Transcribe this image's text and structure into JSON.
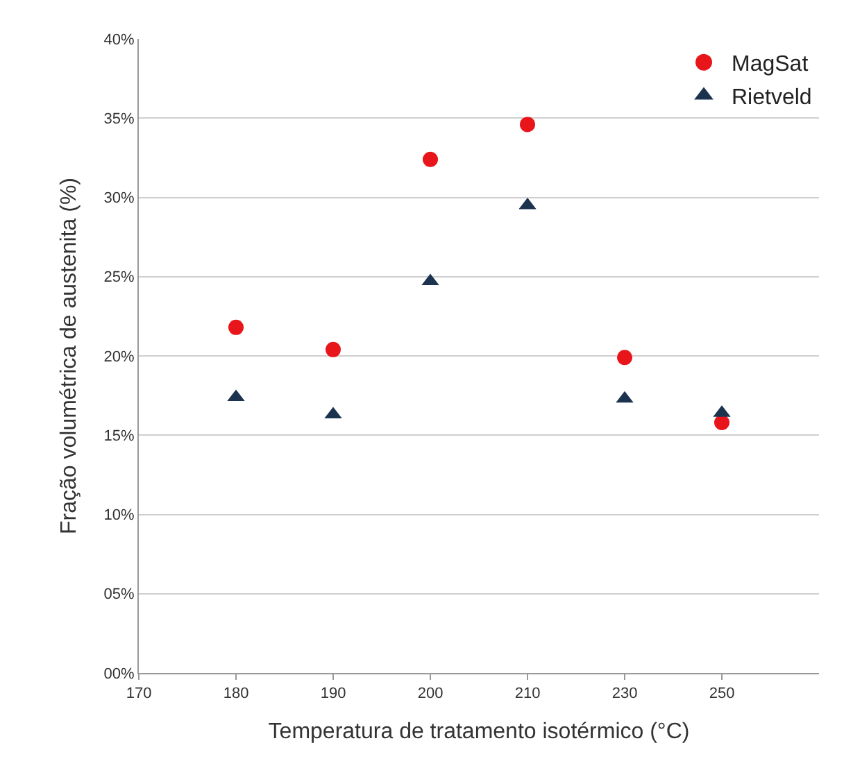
{
  "chart_data": {
    "type": "scatter",
    "xlabel": "Temperatura de tratamento isotérmico (°C)",
    "ylabel": "Fração volumétrica de austenita (%)",
    "categories": [
      "170",
      "180",
      "190",
      "200",
      "210",
      "230",
      "250",
      null
    ],
    "series": [
      {
        "name": "MagSat",
        "color": "#e8151b",
        "marker": "circle",
        "values": [
          null,
          21.8,
          20.4,
          32.4,
          34.6,
          19.9,
          15.8,
          null
        ]
      },
      {
        "name": "Rietveld",
        "color": "#1c3350",
        "marker": "triangle",
        "values": [
          null,
          17.4,
          16.3,
          24.7,
          29.5,
          17.3,
          16.4,
          null
        ]
      }
    ],
    "ylim": [
      0,
      40
    ],
    "yticks": [
      {
        "value": 0,
        "label": "00%"
      },
      {
        "value": 5,
        "label": "05%"
      },
      {
        "value": 10,
        "label": "10%"
      },
      {
        "value": 15,
        "label": "15%"
      },
      {
        "value": 20,
        "label": "20%"
      },
      {
        "value": 25,
        "label": "25%"
      },
      {
        "value": 30,
        "label": "30%"
      },
      {
        "value": 35,
        "label": "35%"
      },
      {
        "value": 40,
        "label": "40%"
      }
    ],
    "grid": "y",
    "legend": "top right"
  }
}
